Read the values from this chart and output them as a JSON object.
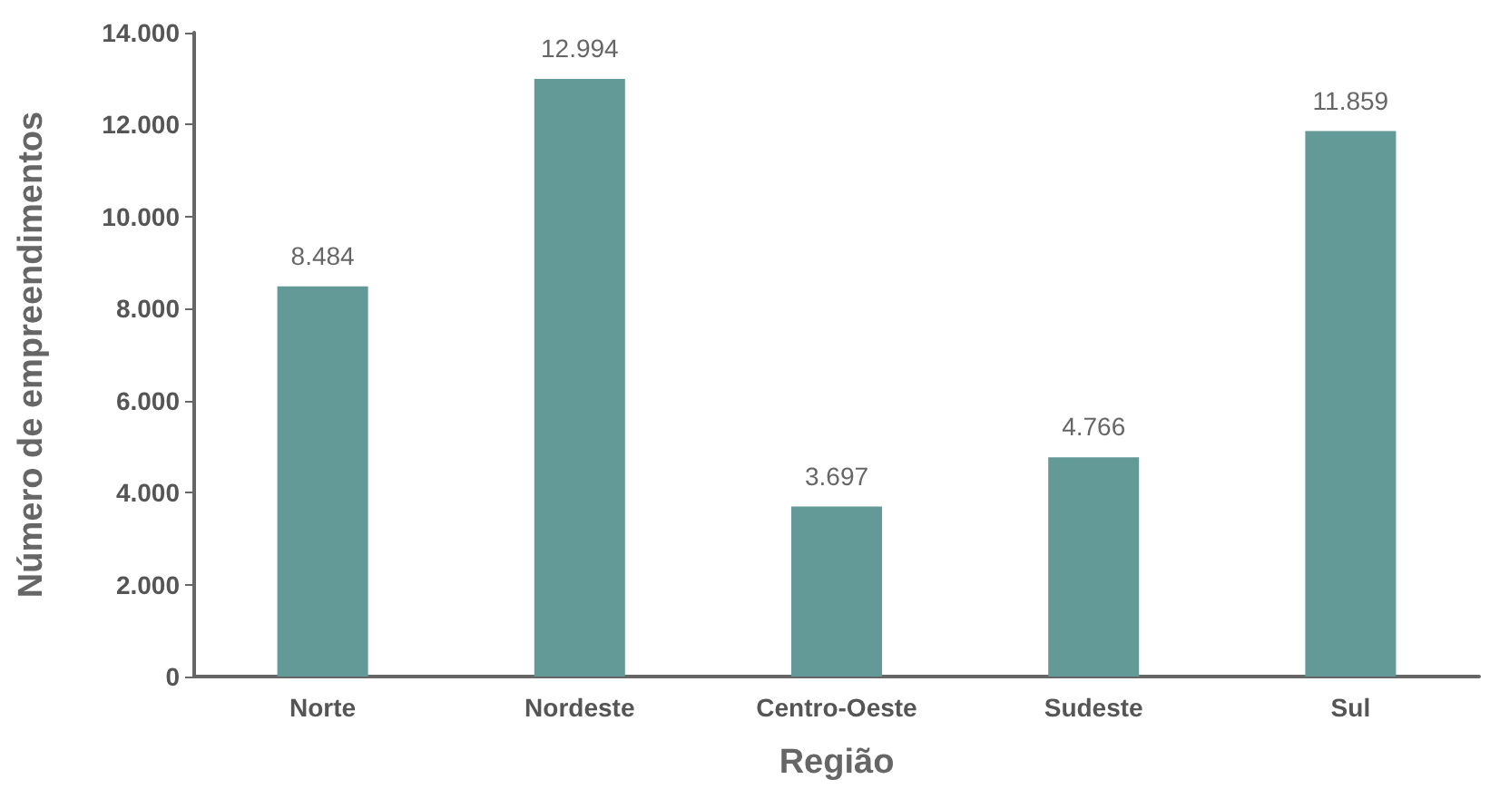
{
  "chart_data": {
    "type": "bar",
    "xlabel": "Região",
    "ylabel": "Número de empreendimentos",
    "categories": [
      "Norte",
      "Nordeste",
      "Centro-Oeste",
      "Sudeste",
      "Sul"
    ],
    "values": [
      8484,
      12994,
      3697,
      4766,
      11859
    ],
    "value_labels": [
      "8.484",
      "12.994",
      "3.697",
      "4.766",
      "11.859"
    ],
    "color": "#639997",
    "ylim": [
      0,
      14000
    ],
    "yticks": [
      {
        "value": 0,
        "label": "0"
      },
      {
        "value": 2000,
        "label": "2.000"
      },
      {
        "value": 4000,
        "label": "4.000"
      },
      {
        "value": 6000,
        "label": "6.000"
      },
      {
        "value": 8000,
        "label": "8.000"
      },
      {
        "value": 10000,
        "label": "10.000"
      },
      {
        "value": 12000,
        "label": "12.000"
      },
      {
        "value": 14000,
        "label": "14.000"
      }
    ],
    "grid": false
  }
}
